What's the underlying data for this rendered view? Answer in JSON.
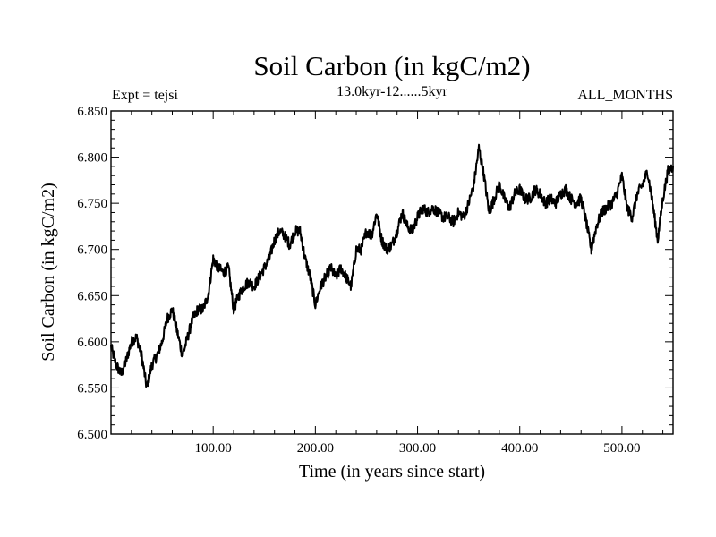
{
  "chart_data": {
    "type": "line",
    "title": "Soil Carbon (in kgC/m2)",
    "subtitle": "13.0kyr-12......5kyr",
    "left_label": "Expt = tejsi",
    "right_label": "ALL_MONTHS",
    "xlabel": "Time (in years since start)",
    "ylabel": "Soil Carbon (in kgC/m2)",
    "xlim": [
      0,
      550
    ],
    "ylim": [
      6.5,
      6.85
    ],
    "x_ticks": [
      100,
      200,
      300,
      400,
      500
    ],
    "x_tick_labels": [
      "100.00",
      "200.00",
      "300.00",
      "400.00",
      "500.00"
    ],
    "y_ticks": [
      6.5,
      6.55,
      6.6,
      6.65,
      6.7,
      6.75,
      6.8,
      6.85
    ],
    "y_tick_labels": [
      "6.500",
      "6.550",
      "6.600",
      "6.650",
      "6.700",
      "6.750",
      "6.800",
      "6.850"
    ],
    "series": [
      {
        "name": "Soil Carbon",
        "color": "#000000",
        "x": [
          0,
          5,
          10,
          15,
          20,
          25,
          30,
          35,
          40,
          45,
          50,
          55,
          60,
          65,
          70,
          75,
          80,
          85,
          90,
          95,
          100,
          105,
          110,
          115,
          120,
          125,
          130,
          135,
          140,
          145,
          150,
          155,
          160,
          165,
          170,
          175,
          180,
          185,
          190,
          195,
          200,
          205,
          210,
          215,
          220,
          225,
          230,
          235,
          240,
          245,
          250,
          255,
          260,
          265,
          270,
          275,
          280,
          285,
          290,
          295,
          300,
          305,
          310,
          315,
          320,
          325,
          330,
          335,
          340,
          345,
          350,
          355,
          360,
          365,
          370,
          375,
          380,
          385,
          390,
          395,
          400,
          405,
          410,
          415,
          420,
          425,
          430,
          435,
          440,
          445,
          450,
          455,
          460,
          465,
          470,
          475,
          480,
          485,
          490,
          495,
          500,
          505,
          510,
          515,
          520,
          525,
          530,
          535,
          540,
          545,
          550
        ],
        "values": [
          6.595,
          6.575,
          6.565,
          6.58,
          6.6,
          6.605,
          6.585,
          6.55,
          6.575,
          6.585,
          6.6,
          6.625,
          6.635,
          6.61,
          6.585,
          6.605,
          6.625,
          6.635,
          6.635,
          6.65,
          6.69,
          6.68,
          6.675,
          6.68,
          6.635,
          6.65,
          6.66,
          6.665,
          6.66,
          6.67,
          6.68,
          6.69,
          6.71,
          6.72,
          6.715,
          6.705,
          6.72,
          6.72,
          6.69,
          6.67,
          6.64,
          6.66,
          6.67,
          6.68,
          6.67,
          6.68,
          6.67,
          6.66,
          6.7,
          6.7,
          6.72,
          6.715,
          6.74,
          6.71,
          6.7,
          6.705,
          6.72,
          6.74,
          6.725,
          6.72,
          6.735,
          6.745,
          6.74,
          6.745,
          6.74,
          6.735,
          6.735,
          6.73,
          6.74,
          6.735,
          6.75,
          6.77,
          6.81,
          6.78,
          6.74,
          6.755,
          6.77,
          6.755,
          6.745,
          6.76,
          6.765,
          6.755,
          6.755,
          6.765,
          6.76,
          6.75,
          6.755,
          6.75,
          6.76,
          6.765,
          6.755,
          6.75,
          6.755,
          6.73,
          6.7,
          6.725,
          6.74,
          6.745,
          6.75,
          6.76,
          6.78,
          6.745,
          6.735,
          6.76,
          6.77,
          6.785,
          6.75,
          6.71,
          6.755,
          6.785,
          6.79
        ]
      }
    ]
  }
}
